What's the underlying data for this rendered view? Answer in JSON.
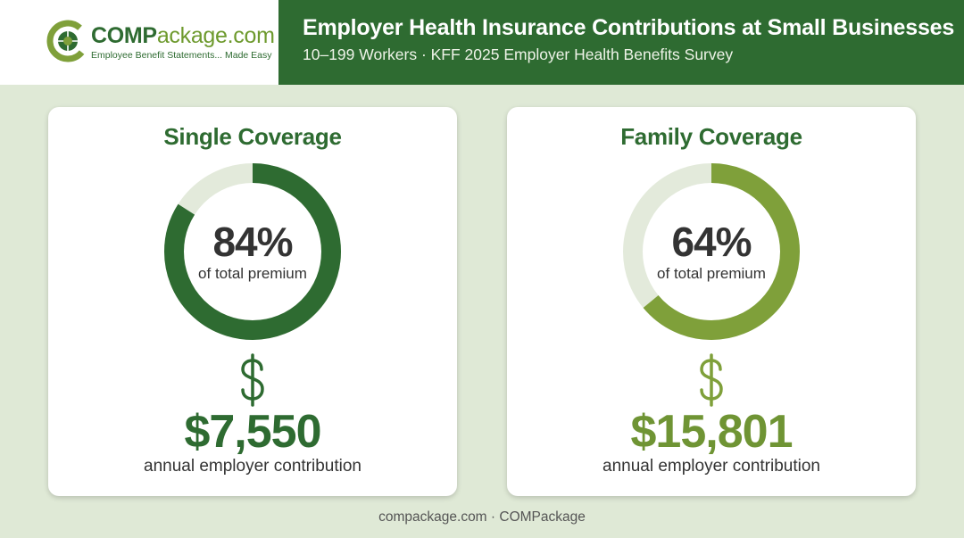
{
  "header": {
    "logo_bold": "COMP",
    "logo_rest": "ackage.com",
    "logo_tagline": "Employee Benefit Statements... Made Easy",
    "title": "Employer Health Insurance Contributions at Small Businesses",
    "subtitle": "10–199 Workers · KFF 2025 Employer Health Benefits Survey"
  },
  "cards": [
    {
      "title": "Single Coverage",
      "percent": 84,
      "percent_text": "84%",
      "percent_label": "of total premium",
      "amount": "$7,550",
      "amount_label": "annual employer contribution",
      "ring_color": "#2e6b31",
      "amount_color": "#2e6b31"
    },
    {
      "title": "Family Coverage",
      "percent": 64,
      "percent_text": "64%",
      "percent_label": "of total premium",
      "amount": "$15,801",
      "amount_label": "annual employer contribution",
      "ring_color": "#7fa03a",
      "amount_color": "#6f9434"
    }
  ],
  "colors": {
    "brand_dark_green": "#2e6b31",
    "brand_light_green": "#7fa03a",
    "ring_track": "#e3eadb",
    "background": "#dfe9d6"
  },
  "footer": {
    "text": "compackage.com · COMPackage"
  },
  "icons": {
    "dollar": "dollar-sign-icon",
    "logo": "compackage-logo-icon"
  }
}
